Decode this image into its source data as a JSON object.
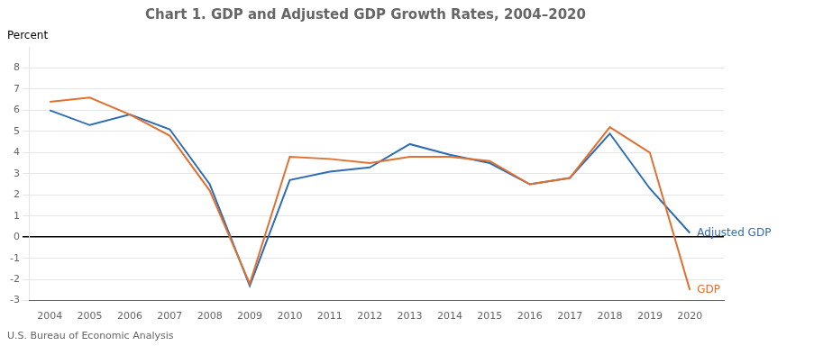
{
  "chart_data": {
    "type": "line",
    "title": "Chart 1. GDP and Adjusted GDP Growth Rates, 2004–2020",
    "ylabel": "Percent",
    "footnote": "U.S. Bureau of Economic Analysis",
    "x": [
      2004,
      2005,
      2006,
      2007,
      2008,
      2009,
      2010,
      2011,
      2012,
      2013,
      2014,
      2015,
      2016,
      2017,
      2018,
      2019,
      2020
    ],
    "series": [
      {
        "name": "GDP",
        "color": "#e07030",
        "values": [
          6.4,
          6.6,
          5.8,
          4.8,
          2.2,
          -2.2,
          3.8,
          3.7,
          3.5,
          3.8,
          3.8,
          3.6,
          2.5,
          2.8,
          5.2,
          4.0,
          -2.5
        ]
      },
      {
        "name": "Adjusted GDP",
        "color": "#2e6db4",
        "values": [
          6.0,
          5.3,
          5.8,
          5.1,
          2.5,
          -2.3,
          2.7,
          3.1,
          3.3,
          4.4,
          3.9,
          3.5,
          2.5,
          2.8,
          4.9,
          2.3,
          0.2
        ]
      }
    ],
    "xlim": [
      2003.5,
      2020.85
    ],
    "xticks": [
      2004,
      2005,
      2006,
      2007,
      2008,
      2009,
      2010,
      2011,
      2012,
      2013,
      2014,
      2015,
      2016,
      2017,
      2018,
      2019,
      2020
    ],
    "ylim": [
      -3,
      9
    ],
    "yticks": [
      -3,
      -2,
      -1,
      0,
      1,
      2,
      3,
      4,
      5,
      6,
      7,
      8
    ],
    "grid": true
  }
}
